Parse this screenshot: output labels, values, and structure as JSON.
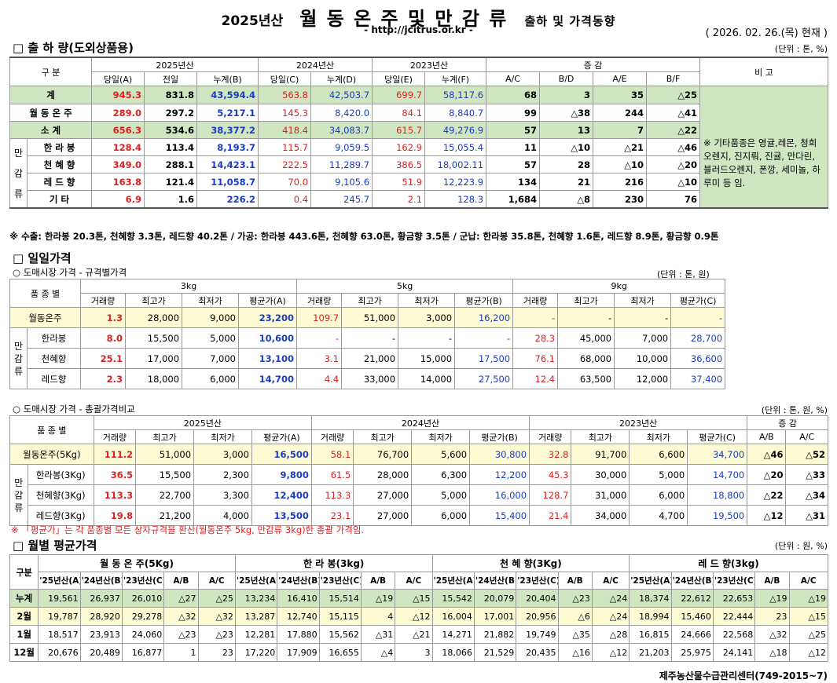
{
  "header": {
    "year_prefix": "2025년산",
    "main": "월 동 온 주 및 만 감 류",
    "suffix": "출하 및 가격동향",
    "url": "- http://jcitrus.or.kr -",
    "date": "( 2026. 02. 26.(목) 현재 )"
  },
  "shipment": {
    "title": "□ 출 하 량(도외상품용)",
    "unit": "(단위 : 톤, %)",
    "h_gubun": "구   분",
    "h_2025": "2025년산",
    "h_2024": "2024년산",
    "h_2023": "2023년산",
    "h_change": "증    감",
    "h_note": "비 고",
    "sub": [
      "당일(A)",
      "전일",
      "누계(B)",
      "당일(C)",
      "누계(D)",
      "당일(E)",
      "누계(F)",
      "A/C",
      "B/D",
      "A/E",
      "B/F"
    ],
    "group_label": "만 감 류",
    "rows": [
      {
        "name": "계",
        "v": [
          "945.3",
          "831.8",
          "43,594.4",
          "563.8",
          "42,503.7",
          "699.7",
          "58,117.6",
          "68",
          "3",
          "35",
          "△25"
        ]
      },
      {
        "name": "월 동 온 주",
        "v": [
          "289.0",
          "297.2",
          "5,217.1",
          "145.3",
          "8,420.0",
          "84.1",
          "8,840.7",
          "99",
          "△38",
          "244",
          "△41"
        ]
      },
      {
        "name": "소    계",
        "v": [
          "656.3",
          "534.6",
          "38,377.2",
          "418.4",
          "34,083.7",
          "615.7",
          "49,276.9",
          "57",
          "13",
          "7",
          "△22"
        ]
      },
      {
        "name": "한 라 봉",
        "v": [
          "128.4",
          "113.4",
          "8,193.7",
          "115.7",
          "9,059.5",
          "162.9",
          "15,055.4",
          "11",
          "△10",
          "△21",
          "△46"
        ]
      },
      {
        "name": "천 혜 향",
        "v": [
          "349.0",
          "288.1",
          "14,423.1",
          "222.5",
          "11,289.7",
          "386.5",
          "18,002.11",
          "57",
          "28",
          "△10",
          "△20"
        ]
      },
      {
        "name": "레 드 향",
        "v": [
          "163.8",
          "121.4",
          "11,058.7",
          "70.0",
          "9,105.6",
          "51.9",
          "12,223.9",
          "134",
          "21",
          "216",
          "△10"
        ]
      },
      {
        "name": "기    타",
        "v": [
          "6.9",
          "1.6",
          "226.2",
          "0.4",
          "245.7",
          "2.1",
          "128.3",
          "1,684",
          "△8",
          "230",
          "76"
        ]
      }
    ],
    "note": "※ 기타품종은 영귤,레몬, 청희오렌지, 진지뤄, 진귤, 만다린, 블러드오렌지, 폰깡, 세미놀, 하루미 등 임.",
    "footnote": "※ 수출: 한라봉 20.3톤, 천혜향 3.3톤, 레드향 40.2톤 / 가공: 한라봉 443.6톤, 천혜향 63.0톤, 황금향 3.5톤 / 군납: 한라봉 35.8톤, 천혜향 1.6톤, 레드향 8.9톤, 황금향 0.9톤"
  },
  "daily": {
    "title": "□ 일일가격",
    "sub1": "○ 도매시장 가격 - 규격별가격",
    "unit1": "(단위 : 톤, 원)",
    "h_kind": "품 종 별",
    "h_3kg": "3kg",
    "h_5kg": "5kg",
    "h_9kg": "9kg",
    "sub_cols": [
      "거래량",
      "최고가",
      "최저가",
      "평균가(A)",
      "거래량",
      "최고가",
      "최저가",
      "평균가(B)",
      "거래량",
      "최고가",
      "최저가",
      "평균가(C)"
    ],
    "group_label": "만 감 류",
    "rows": [
      {
        "name": "월동온주",
        "v": [
          "1.3",
          "28,000",
          "9,000",
          "23,200",
          "109.7",
          "51,000",
          "3,000",
          "16,200",
          "-",
          "-",
          "-",
          "-"
        ]
      },
      {
        "name": "한라봉",
        "v": [
          "8.0",
          "15,500",
          "5,000",
          "10,600",
          "-",
          "-",
          "-",
          "-",
          "28.3",
          "45,000",
          "7,000",
          "28,700"
        ]
      },
      {
        "name": "천혜향",
        "v": [
          "25.1",
          "17,000",
          "7,000",
          "13,100",
          "3.1",
          "21,000",
          "15,000",
          "17,500",
          "76.1",
          "68,000",
          "10,000",
          "36,600"
        ]
      },
      {
        "name": "레드향",
        "v": [
          "2.3",
          "18,000",
          "6,000",
          "14,700",
          "4.4",
          "33,000",
          "14,000",
          "27,500",
          "12.4",
          "63,500",
          "12,000",
          "37,400"
        ]
      }
    ],
    "sub2": "○ 도매시장 가격 - 총괄가격비교",
    "unit2": "(단위 : 톤, 원, %)",
    "h_2025": "2025년산",
    "h_2024": "2024년산",
    "h_2023": "2023년산",
    "h_change": "증  감",
    "sub_cols2": [
      "거래량",
      "최고가",
      "최저가",
      "평균가(A)",
      "거래량",
      "최고가",
      "최저가",
      "평균가(B)",
      "거래량",
      "최고가",
      "최저가",
      "평균가(C)",
      "A/B",
      "A/C"
    ],
    "rows2": [
      {
        "name": "월동온주(5Kg)",
        "v": [
          "111.2",
          "51,000",
          "3,000",
          "16,500",
          "58.1",
          "76,700",
          "5,600",
          "30,800",
          "32.8",
          "91,700",
          "6,600",
          "34,700",
          "△46",
          "△52"
        ]
      },
      {
        "name": "한라봉(3Kg)",
        "v": [
          "36.5",
          "15,500",
          "2,300",
          "9,800",
          "61.5",
          "28,000",
          "6,300",
          "12,200",
          "45.3",
          "30,000",
          "5,000",
          "14,700",
          "△20",
          "△33"
        ]
      },
      {
        "name": "천혜향(3Kg)",
        "v": [
          "113.3",
          "22,700",
          "3,300",
          "12,400",
          "113.3",
          "27,000",
          "5,000",
          "16,000",
          "128.7",
          "31,000",
          "6,000",
          "18,800",
          "△22",
          "△34"
        ]
      },
      {
        "name": "레드향(3Kg)",
        "v": [
          "19.8",
          "21,200",
          "4,000",
          "13,500",
          "23.1",
          "27,000",
          "6,000",
          "15,400",
          "21.4",
          "34,000",
          "4,700",
          "19,500",
          "△12",
          "△31"
        ]
      }
    ],
    "footnote": "※ 「평균가」는 각 품종별 모든 상자규격을 환산(월동온주 5kg, 만감류 3kg)한 총괄 가격임."
  },
  "monthly": {
    "title": "□ 월별 평균가격",
    "unit": "(단위 : 원, %)",
    "h_gubun": "구분",
    "groups": [
      "월 동 온 주(5Kg)",
      "한 라 봉(3kg)",
      "천 혜 향(3Kg)",
      "레 드 향(3kg)"
    ],
    "sub_cols": [
      "'25년산(A)",
      "'24년산(B)",
      "'23년산(C)",
      "A/B",
      "A/C"
    ],
    "rows": [
      {
        "name": "누계",
        "v": [
          "19,561",
          "26,937",
          "26,010",
          "△27",
          "△25",
          "13,234",
          "16,410",
          "15,514",
          "△19",
          "△15",
          "15,542",
          "20,079",
          "20,404",
          "△23",
          "△24",
          "18,374",
          "22,612",
          "22,653",
          "△19",
          "△19"
        ]
      },
      {
        "name": "2월",
        "v": [
          "19,787",
          "28,920",
          "29,278",
          "△32",
          "△32",
          "13,287",
          "12,740",
          "15,115",
          "4",
          "△12",
          "16,004",
          "17,001",
          "20,956",
          "△6",
          "△24",
          "18,994",
          "15,460",
          "22,444",
          "23",
          "△15"
        ]
      },
      {
        "name": "1월",
        "v": [
          "18,517",
          "23,913",
          "24,060",
          "△23",
          "△23",
          "12,281",
          "17,880",
          "15,562",
          "△31",
          "△21",
          "14,271",
          "21,882",
          "19,749",
          "△35",
          "△28",
          "16,815",
          "24,666",
          "22,568",
          "△32",
          "△25"
        ]
      },
      {
        "name": "12월",
        "v": [
          "20,676",
          "20,489",
          "16,877",
          "1",
          "23",
          "17,220",
          "17,909",
          "16,655",
          "△4",
          "3",
          "18,066",
          "21,529",
          "20,435",
          "△16",
          "△12",
          "21,203",
          "25,975",
          "24,141",
          "△18",
          "△12"
        ]
      }
    ],
    "source": "제주농산물수급관리센터(749-2015~7)"
  }
}
